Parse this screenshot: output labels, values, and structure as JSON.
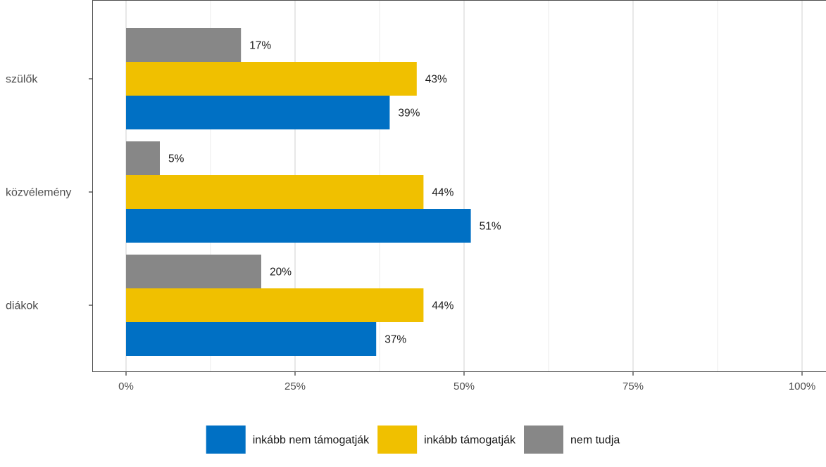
{
  "chart_data": {
    "type": "bar",
    "orientation": "horizontal",
    "categories": [
      "szülők",
      "közvélemény",
      "diákok"
    ],
    "series": [
      {
        "name": "nem tudja",
        "color": "#878787",
        "values": [
          17,
          5,
          20
        ],
        "labels": [
          "17%",
          "5%",
          "20%"
        ]
      },
      {
        "name": "inkább támogatják",
        "color": "#f0c000",
        "values": [
          43,
          44,
          44
        ],
        "labels": [
          "43%",
          "44%",
          "44%"
        ]
      },
      {
        "name": "inkább nem támogatják",
        "color": "#0070c4",
        "values": [
          39,
          51,
          37
        ],
        "labels": [
          "39%",
          "51%",
          "37%"
        ]
      }
    ],
    "xlim": [
      0,
      100
    ],
    "x_ticks": [
      0,
      25,
      50,
      75,
      100
    ],
    "x_tick_labels": [
      "0%",
      "25%",
      "50%",
      "75%",
      "100%"
    ],
    "grid": true,
    "legend_position": "bottom",
    "legend_order": [
      "inkább nem támogatják",
      "inkább támogatják",
      "nem tudja"
    ],
    "title": "",
    "xlabel": "",
    "ylabel": ""
  }
}
